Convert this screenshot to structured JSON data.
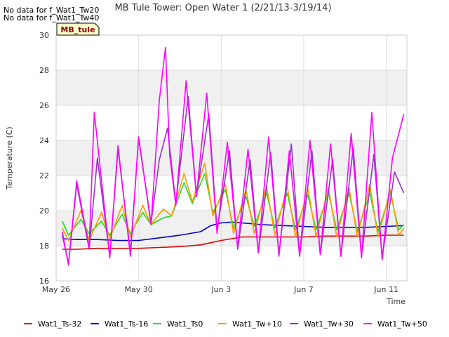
{
  "title": "MB Tule Tower: Open Water 1 (2/21/13-3/19/14)",
  "no_data_notes": [
    "No data for f_Wat1_Tw20",
    "No data for f_Wat1_Tw40"
  ],
  "station_tag": "MB_tule",
  "colors": {
    "band": "#f0f0f0",
    "plot_bg": "#ffffff",
    "grid": "#dddddd",
    "tag_bg": "#ffffcc",
    "tag_text": "#8b0000"
  },
  "chart_data": {
    "type": "line",
    "title": "MB Tule Tower: Open Water 1 (2/21/13-3/19/14)",
    "xlabel": "Time",
    "ylabel": "Temperature (C)",
    "ylim": [
      16,
      30
    ],
    "yticks": [
      16,
      18,
      20,
      22,
      24,
      26,
      28,
      30
    ],
    "xlim_days": [
      0,
      17
    ],
    "xticks": [
      {
        "label": "May 26",
        "day": 0
      },
      {
        "label": "May 30",
        "day": 4
      },
      {
        "label": "Jun 3",
        "day": 8
      },
      {
        "label": "Jun 7",
        "day": 12
      },
      {
        "label": "Jun 11",
        "day": 16
      }
    ],
    "grid": true,
    "legend_position": "bottom",
    "series": [
      {
        "name": "Wat1_Ts-32",
        "color": "#dd0000",
        "x": [
          0.3,
          1,
          2,
          3,
          4,
          5,
          6,
          7,
          8,
          9,
          10,
          11,
          12,
          13,
          14,
          15,
          16,
          16.85
        ],
        "y": [
          17.8,
          17.8,
          17.85,
          17.85,
          17.85,
          17.9,
          17.95,
          18.05,
          18.3,
          18.5,
          18.5,
          18.5,
          18.5,
          18.55,
          18.55,
          18.55,
          18.6,
          18.6
        ]
      },
      {
        "name": "Wat1_Ts-16",
        "color": "#0000cc",
        "x": [
          0.3,
          1,
          2,
          3,
          4,
          5,
          6,
          7,
          7.5,
          8,
          8.5,
          9,
          10,
          11,
          12,
          13,
          14,
          15,
          16,
          16.85
        ],
        "y": [
          18.4,
          18.35,
          18.35,
          18.3,
          18.3,
          18.45,
          18.6,
          18.8,
          19.15,
          19.3,
          19.35,
          19.3,
          19.2,
          19.15,
          19.1,
          19.05,
          19.05,
          19.05,
          19.1,
          19.15
        ]
      },
      {
        "name": "Wat1_Ts0",
        "color": "#22dd22",
        "x": [
          0.3,
          0.6,
          1.2,
          1.6,
          2.2,
          2.6,
          3.2,
          3.6,
          4.2,
          4.6,
          5.2,
          5.6,
          6.2,
          6.6,
          7.2,
          7.6,
          8.2,
          8.6,
          9.2,
          9.6,
          10.2,
          10.6,
          11.2,
          11.6,
          12.2,
          12.6,
          13.2,
          13.6,
          14.2,
          14.6,
          15.2,
          15.6,
          16.2,
          16.6,
          16.85
        ],
        "y": [
          19.4,
          18.6,
          19.5,
          18.7,
          19.4,
          18.6,
          19.8,
          18.7,
          19.9,
          19.2,
          19.6,
          19.7,
          21.6,
          20.4,
          22.1,
          19.9,
          21.2,
          19.0,
          20.8,
          19.1,
          21.0,
          19.0,
          21.0,
          18.9,
          20.9,
          18.9,
          21.0,
          18.9,
          21.0,
          18.8,
          21.0,
          18.8,
          21.0,
          18.9,
          19.2
        ]
      },
      {
        "name": "Wat1_Tw+10",
        "color": "#ff9900",
        "x": [
          0.3,
          0.6,
          1.2,
          1.6,
          2.2,
          2.6,
          3.2,
          3.6,
          4.2,
          4.6,
          5.2,
          5.6,
          6.2,
          6.6,
          7.2,
          7.6,
          8.2,
          8.6,
          9.2,
          9.6,
          10.2,
          10.6,
          11.2,
          11.6,
          12.2,
          12.6,
          13.2,
          13.6,
          14.2,
          14.6,
          15.2,
          15.6,
          16.2,
          16.6,
          16.85
        ],
        "y": [
          19.0,
          18.3,
          20.0,
          18.3,
          19.9,
          18.4,
          20.3,
          18.5,
          20.3,
          19.2,
          20.1,
          19.7,
          22.1,
          20.5,
          22.7,
          19.7,
          21.5,
          18.7,
          21.2,
          18.7,
          21.4,
          18.6,
          21.4,
          18.5,
          21.3,
          18.5,
          21.3,
          18.5,
          21.3,
          18.5,
          21.5,
          18.5,
          21.2,
          18.6,
          19.0
        ]
      },
      {
        "name": "Wat1_Tw+30",
        "color": "#9933cc",
        "x": [
          0.3,
          0.6,
          1.0,
          1.6,
          2.0,
          2.6,
          3.0,
          3.6,
          4.0,
          4.6,
          5.0,
          5.4,
          5.8,
          6.4,
          6.8,
          7.4,
          7.8,
          8.4,
          8.8,
          9.4,
          9.8,
          10.4,
          10.8,
          11.4,
          11.8,
          12.4,
          12.8,
          13.4,
          13.8,
          14.4,
          14.8,
          15.4,
          15.8,
          16.4,
          16.85
        ],
        "y": [
          18.6,
          17.0,
          21.5,
          17.8,
          23.0,
          17.4,
          23.5,
          17.6,
          24.1,
          19.3,
          22.9,
          24.7,
          20.4,
          26.5,
          20.8,
          25.5,
          18.9,
          23.4,
          17.8,
          22.9,
          17.6,
          23.3,
          17.5,
          23.8,
          17.4,
          23.4,
          17.5,
          22.9,
          17.4,
          23.6,
          17.4,
          23.2,
          17.3,
          22.2,
          21.0
        ]
      },
      {
        "name": "Wat1_Tw+50",
        "color": "#ff00ff",
        "x": [
          0.3,
          0.6,
          1.0,
          1.6,
          1.85,
          2.6,
          3.0,
          3.6,
          4.0,
          4.6,
          5.0,
          5.3,
          5.5,
          5.8,
          6.3,
          6.8,
          7.3,
          7.8,
          8.3,
          8.8,
          9.3,
          9.8,
          10.3,
          10.8,
          11.3,
          11.8,
          12.3,
          12.8,
          13.3,
          13.8,
          14.3,
          14.8,
          15.3,
          15.8,
          16.3,
          16.85
        ],
        "y": [
          18.8,
          16.9,
          21.7,
          17.9,
          25.6,
          17.3,
          23.7,
          17.4,
          24.2,
          19.2,
          26.3,
          29.3,
          23.2,
          20.3,
          27.4,
          20.8,
          26.7,
          18.7,
          23.9,
          17.9,
          23.5,
          17.6,
          24.2,
          17.4,
          23.4,
          17.4,
          24.0,
          17.5,
          23.8,
          17.4,
          24.4,
          17.3,
          25.6,
          17.2,
          23.0,
          25.5
        ]
      }
    ]
  }
}
